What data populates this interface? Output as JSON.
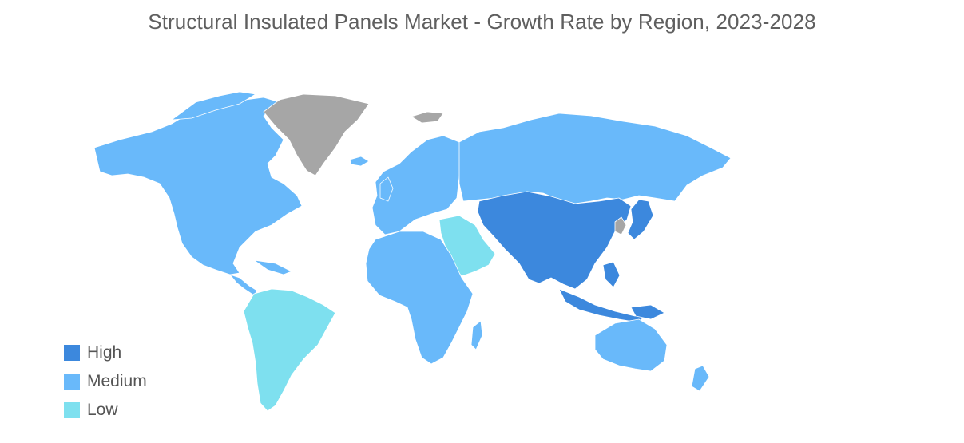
{
  "title": "Structural Insulated Panels Market - Growth Rate by Region, 2023-2028",
  "colors": {
    "high": "#3c88dd",
    "medium": "#69b9fa",
    "low": "#7ee0ef",
    "no_data": "#a6a6a6",
    "border": "#ffffff"
  },
  "legend": [
    {
      "key": "high",
      "label": "High",
      "color": "#3c88dd"
    },
    {
      "key": "medium",
      "label": "Medium",
      "color": "#69b9fa"
    },
    {
      "key": "low",
      "label": "Low",
      "color": "#7ee0ef"
    }
  ],
  "regions": {
    "north_america": "medium",
    "greenland": "no_data",
    "south_america": "low",
    "europe": "medium",
    "russia": "medium",
    "middle_east": "low",
    "africa": "medium",
    "asia_pacific": "high",
    "japan": "high",
    "korea": "no_data",
    "australia_nz": "medium"
  }
}
